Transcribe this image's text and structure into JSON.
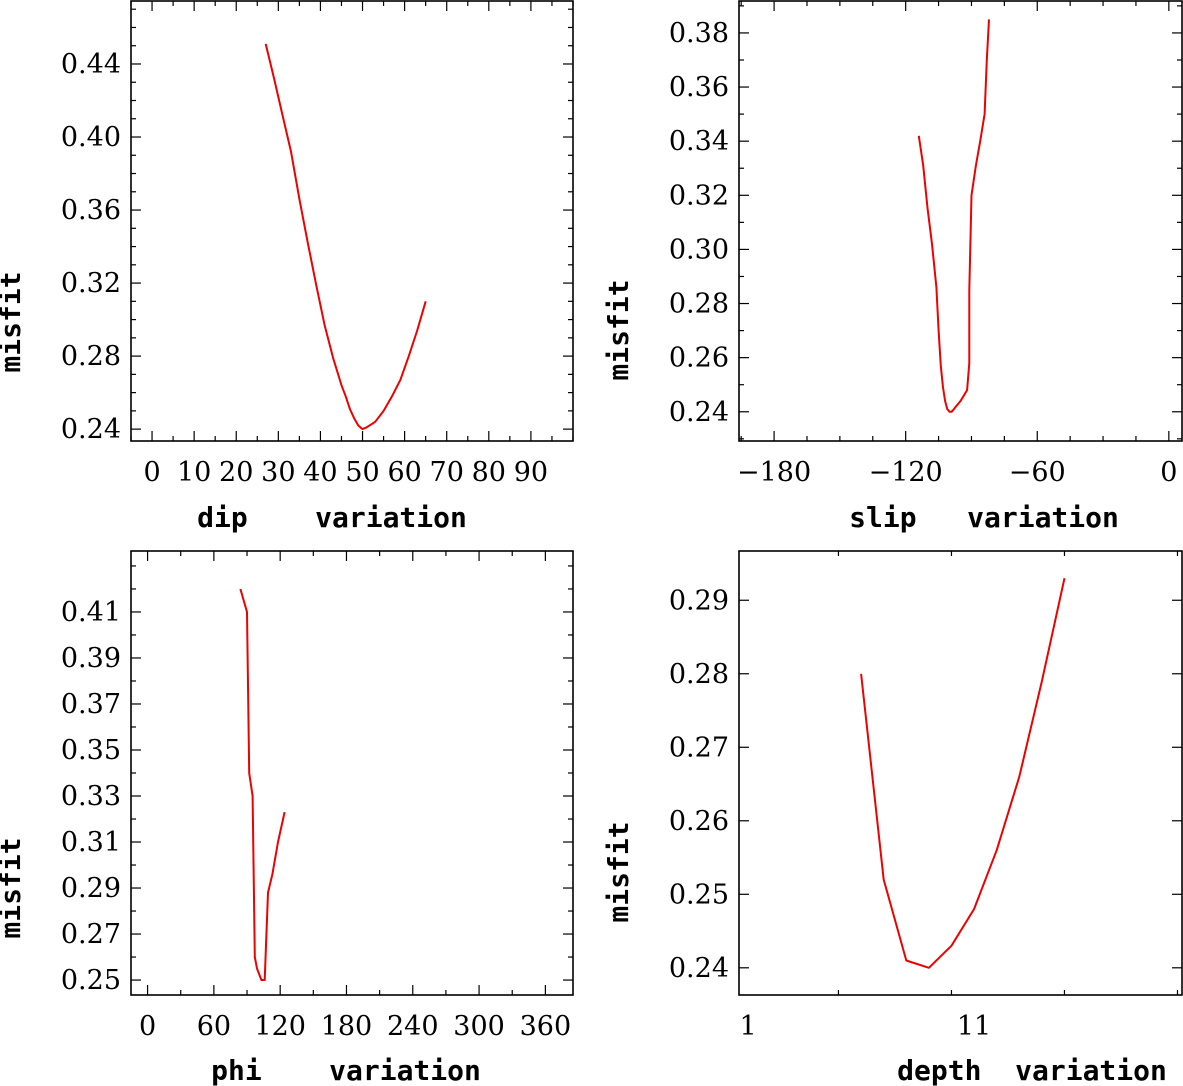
{
  "chart_data": [
    {
      "type": "line",
      "title": "",
      "xlabel": "dip    variation",
      "ylabel": "misfit",
      "xlim": [
        -5,
        100
      ],
      "ylim": [
        0.2335,
        0.4745
      ],
      "xticks": [
        0,
        10,
        20,
        30,
        40,
        50,
        60,
        70,
        80,
        90
      ],
      "xticklabels": [
        "0",
        "10",
        "20",
        "30",
        "40",
        "50",
        "60",
        "70",
        "80",
        "90"
      ],
      "x_minor_step": 5,
      "yticks": [
        0.24,
        0.28,
        0.32,
        0.36,
        0.4,
        0.44
      ],
      "yticklabels": [
        "0.24",
        "0.28",
        "0.32",
        "0.36",
        "0.40",
        "0.44"
      ],
      "y_minor_step": 0.01,
      "grid": false,
      "series": [
        {
          "color": "#ee0000",
          "x": [
            27,
            29,
            31,
            33,
            35,
            37,
            39,
            41,
            43,
            45,
            46,
            47,
            48,
            49,
            50,
            51,
            53,
            55,
            57,
            59,
            61,
            63,
            65
          ],
          "y": [
            0.451,
            0.432,
            0.412,
            0.392,
            0.366,
            0.342,
            0.319,
            0.297,
            0.279,
            0.264,
            0.258,
            0.251,
            0.246,
            0.242,
            0.24,
            0.241,
            0.244,
            0.25,
            0.258,
            0.267,
            0.28,
            0.294,
            0.31
          ]
        }
      ]
    },
    {
      "type": "line",
      "title": "",
      "xlabel": "slip   variation",
      "ylabel": "misfit",
      "xlim": [
        -196,
        6
      ],
      "ylim": [
        0.2292,
        0.3918
      ],
      "xticks": [
        -180,
        -120,
        -60,
        0
      ],
      "xticklabels": [
        "−180",
        "−120",
        "−60",
        "0"
      ],
      "x_minor_step": 15,
      "yticks": [
        0.24,
        0.26,
        0.28,
        0.3,
        0.32,
        0.34,
        0.36,
        0.38
      ],
      "yticklabels": [
        "0.24",
        "0.26",
        "0.28",
        "0.30",
        "0.32",
        "0.34",
        "0.36",
        "0.38"
      ],
      "y_minor_step": 0.01,
      "grid": false,
      "series": [
        {
          "color": "#ee0000",
          "x": [
            -114,
            -112,
            -110,
            -108,
            -106,
            -105,
            -104,
            -103,
            -102,
            -101,
            -100,
            -99,
            -98,
            -97,
            -95,
            -92,
            -91,
            -91,
            -90,
            -88,
            -86,
            -84,
            -83,
            -82
          ],
          "y": [
            0.342,
            0.331,
            0.315,
            0.302,
            0.286,
            0.27,
            0.257,
            0.249,
            0.244,
            0.241,
            0.24,
            0.24,
            0.241,
            0.242,
            0.244,
            0.248,
            0.258,
            0.285,
            0.32,
            0.331,
            0.34,
            0.35,
            0.37,
            0.385
          ]
        }
      ]
    },
    {
      "type": "line",
      "title": "",
      "xlabel": "phi    variation",
      "ylabel": "misfit",
      "xlim": [
        -15,
        385
      ],
      "ylim": [
        0.2435,
        0.4365
      ],
      "xticks": [
        0,
        60,
        120,
        180,
        240,
        300,
        360
      ],
      "xticklabels": [
        "0",
        "60",
        "120",
        "180",
        "240",
        "300",
        "360"
      ],
      "x_minor_step": 30,
      "yticks": [
        0.25,
        0.27,
        0.29,
        0.31,
        0.33,
        0.35,
        0.37,
        0.39,
        0.41
      ],
      "yticklabels": [
        "0.25",
        "0.27",
        "0.29",
        "0.31",
        "0.33",
        "0.35",
        "0.37",
        "0.39",
        "0.41"
      ],
      "y_minor_step": 0.01,
      "grid": false,
      "series": [
        {
          "color": "#ee0000",
          "x": [
            84,
            90,
            92,
            95,
            97,
            99,
            103,
            106,
            109,
            113,
            118,
            124
          ],
          "y": [
            0.42,
            0.41,
            0.34,
            0.33,
            0.26,
            0.255,
            0.25,
            0.25,
            0.288,
            0.296,
            0.31,
            0.323
          ]
        }
      ]
    },
    {
      "type": "line",
      "title": "",
      "xlabel": "depth  variation",
      "ylabel": "misfit",
      "xlim": [
        0.6,
        20.2
      ],
      "ylim": [
        0.2363,
        0.2967
      ],
      "xticks": [
        1,
        11
      ],
      "xticklabels": [
        "1",
        "11"
      ],
      "x_minor_step": 5,
      "yticks": [
        0.24,
        0.25,
        0.26,
        0.27,
        0.28,
        0.29
      ],
      "yticklabels": [
        "0.24",
        "0.25",
        "0.26",
        "0.27",
        "0.28",
        "0.29"
      ],
      "y_minor_step": 0.01,
      "grid": false,
      "series": [
        {
          "color": "#ee0000",
          "x": [
            6,
            7,
            8,
            9,
            10,
            11,
            12,
            13,
            14,
            15
          ],
          "y": [
            0.28,
            0.252,
            0.241,
            0.24,
            0.243,
            0.248,
            0.256,
            0.266,
            0.279,
            0.293
          ]
        }
      ]
    }
  ]
}
